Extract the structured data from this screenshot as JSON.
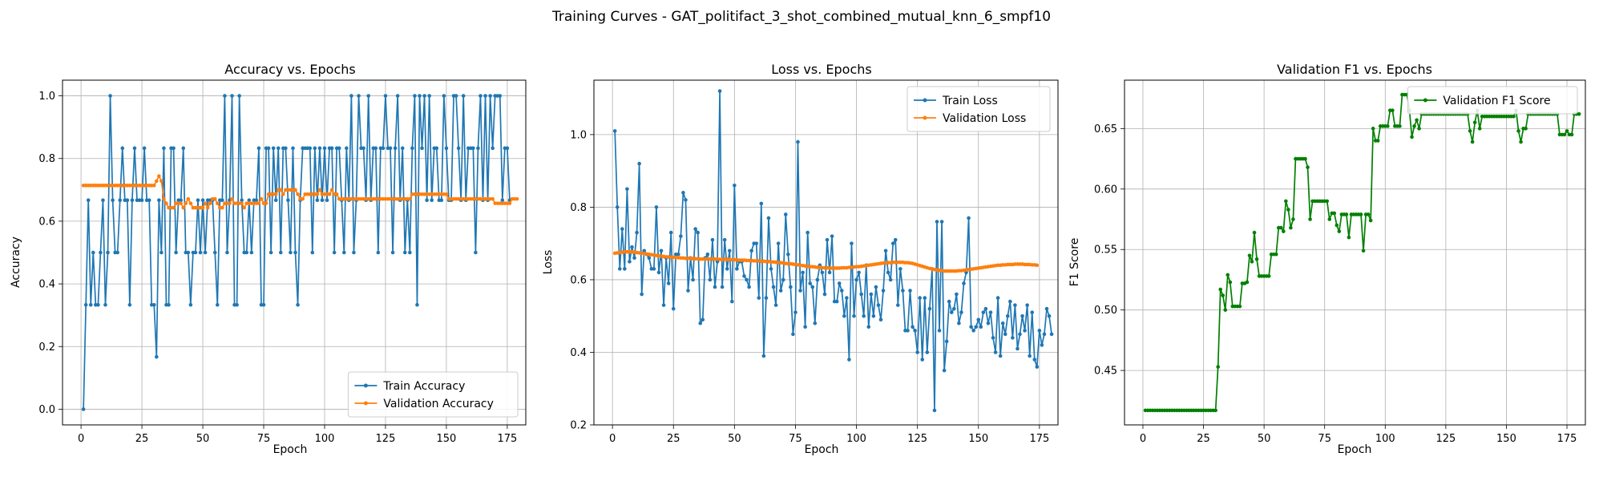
{
  "figure_title": "Training Curves - GAT_politifact_3_shot_combined_mutual_knn_6_smpf10",
  "colors": {
    "train": "#1f77b4",
    "validation": "#ff7f0e",
    "f1": "#008000",
    "grid": "#b0b0b0"
  },
  "chart_data": [
    {
      "type": "line",
      "title": "Accuracy vs. Epochs",
      "xlabel": "Epoch",
      "ylabel": "Accuracy",
      "xlim": [
        -7.6,
        182.6
      ],
      "ylim": [
        -0.05,
        1.05
      ],
      "xticks": [
        0,
        25,
        50,
        75,
        100,
        125,
        150,
        175
      ],
      "yticks": [
        0.0,
        0.2,
        0.4,
        0.6,
        0.8,
        1.0
      ],
      "ytick_decimals": 1,
      "grid": true,
      "legend_position": "lower-right",
      "series": [
        {
          "name": "Train Accuracy",
          "color_key": "train",
          "values": [
            0,
            0.333,
            0.667,
            0.333,
            0.5,
            0.333,
            0.333,
            0.5,
            0.667,
            0.333,
            0.5,
            1,
            0.667,
            0.5,
            0.5,
            0.667,
            0.833,
            0.667,
            0.667,
            0.333,
            0.667,
            0.833,
            0.667,
            0.667,
            0.667,
            0.833,
            0.667,
            0.667,
            0.333,
            0.333,
            0.167,
            0.667,
            0.5,
            0.833,
            0.333,
            0.333,
            0.833,
            0.833,
            0.5,
            0.667,
            0.667,
            0.833,
            0.5,
            0.5,
            0.333,
            0.5,
            0.5,
            0.667,
            0.5,
            0.667,
            0.5,
            0.667,
            0.667,
            0.667,
            0.5,
            0.333,
            0.667,
            0.667,
            1,
            0.5,
            0.667,
            1,
            0.333,
            0.333,
            1,
            0.667,
            0.5,
            0.5,
            0.667,
            0.5,
            0.667,
            0.667,
            0.833,
            0.333,
            0.333,
            0.833,
            0.833,
            0.5,
            0.833,
            0.667,
            0.833,
            0.5,
            0.833,
            0.833,
            0.667,
            0.5,
            0.833,
            0.5,
            0.333,
            0.667,
            0.833,
            0.833,
            0.833,
            0.833,
            0.5,
            0.833,
            0.667,
            0.833,
            0.667,
            0.833,
            0.667,
            0.833,
            0.833,
            0.5,
            0.833,
            0.833,
            0.667,
            0.5,
            0.833,
            0.667,
            1,
            0.5,
            0.667,
            1,
            0.833,
            0.833,
            0.667,
            1,
            0.667,
            0.833,
            0.833,
            0.5,
            0.833,
            0.833,
            1,
            0.833,
            0.833,
            0.5,
            0.833,
            1,
            0.667,
            0.833,
            0.5,
            0.667,
            0.5,
            0.833,
            1,
            0.333,
            1,
            0.833,
            1,
            0.667,
            1,
            0.667,
            0.833,
            0.833,
            0.667,
            0.667,
            1,
            0.833,
            0.667,
            0.667,
            1,
            1,
            0.833,
            0.667,
            1,
            0.667,
            0.833,
            0.833,
            0.833,
            0.5,
            0.833,
            1,
            0.667,
            1,
            0.667,
            1,
            0.833,
            1,
            1,
            1,
            0.667,
            0.833,
            0.833,
            0.667
          ]
        },
        {
          "name": "Validation Accuracy",
          "color_key": "validation",
          "values": [
            0.714,
            0.714,
            0.714,
            0.714,
            0.714,
            0.714,
            0.714,
            0.714,
            0.714,
            0.714,
            0.714,
            0.714,
            0.714,
            0.714,
            0.714,
            0.714,
            0.714,
            0.714,
            0.714,
            0.714,
            0.714,
            0.714,
            0.714,
            0.714,
            0.714,
            0.714,
            0.714,
            0.714,
            0.714,
            0.714,
            0.728,
            0.744,
            0.728,
            0.671,
            0.657,
            0.643,
            0.643,
            0.643,
            0.657,
            0.657,
            0.657,
            0.643,
            0.657,
            0.671,
            0.657,
            0.643,
            0.643,
            0.643,
            0.643,
            0.643,
            0.657,
            0.643,
            0.657,
            0.671,
            0.671,
            0.657,
            0.643,
            0.643,
            0.657,
            0.657,
            0.657,
            0.671,
            0.657,
            0.657,
            0.657,
            0.657,
            0.643,
            0.657,
            0.657,
            0.657,
            0.657,
            0.657,
            0.657,
            0.671,
            0.657,
            0.657,
            0.686,
            0.686,
            0.686,
            0.686,
            0.7,
            0.7,
            0.686,
            0.7,
            0.7,
            0.7,
            0.7,
            0.7,
            0.686,
            0.671,
            0.671,
            0.686,
            0.686,
            0.686,
            0.686,
            0.686,
            0.686,
            0.7,
            0.686,
            0.686,
            0.686,
            0.686,
            0.7,
            0.686,
            0.686,
            0.671,
            0.671,
            0.671,
            0.671,
            0.671,
            0.671,
            0.671,
            0.671,
            0.671,
            0.671,
            0.671,
            0.671,
            0.671,
            0.671,
            0.671,
            0.671,
            0.671,
            0.671,
            0.671,
            0.671,
            0.671,
            0.671,
            0.671,
            0.671,
            0.671,
            0.671,
            0.671,
            0.671,
            0.671,
            0.671,
            0.686,
            0.686,
            0.686,
            0.686,
            0.686,
            0.686,
            0.686,
            0.686,
            0.686,
            0.686,
            0.686,
            0.686,
            0.686,
            0.686,
            0.686,
            0.671,
            0.671,
            0.671,
            0.671,
            0.671,
            0.671,
            0.671,
            0.671,
            0.671,
            0.671,
            0.671,
            0.671,
            0.671,
            0.671,
            0.671,
            0.671,
            0.671,
            0.671,
            0.671,
            0.657,
            0.657,
            0.657,
            0.657,
            0.657,
            0.657,
            0.657,
            0.671,
            0.671,
            0.671
          ]
        }
      ]
    },
    {
      "type": "line",
      "title": "Loss vs. Epochs",
      "xlabel": "Epoch",
      "ylabel": "Loss",
      "xlim": [
        -7.6,
        182.6
      ],
      "ylim": [
        0.2,
        1.15
      ],
      "xticks": [
        0,
        25,
        50,
        75,
        100,
        125,
        150,
        175
      ],
      "yticks": [
        0.2,
        0.4,
        0.6,
        0.8,
        1.0
      ],
      "ytick_decimals": 1,
      "grid": true,
      "legend_position": "upper-right",
      "series": [
        {
          "name": "Train Loss",
          "color_key": "train",
          "values": [
            1.01,
            0.8,
            0.63,
            0.74,
            0.63,
            0.85,
            0.65,
            0.69,
            0.66,
            0.73,
            0.92,
            0.56,
            0.68,
            0.67,
            0.66,
            0.63,
            0.63,
            0.8,
            0.62,
            0.68,
            0.53,
            0.66,
            0.59,
            0.73,
            0.52,
            0.67,
            0.67,
            0.72,
            0.84,
            0.82,
            0.57,
            0.66,
            0.6,
            0.74,
            0.73,
            0.48,
            0.49,
            0.66,
            0.67,
            0.6,
            0.71,
            0.58,
            0.65,
            1.12,
            0.58,
            0.71,
            0.63,
            0.68,
            0.54,
            0.86,
            0.63,
            0.65,
            0.65,
            0.61,
            0.6,
            0.58,
            0.68,
            0.7,
            0.7,
            0.55,
            0.81,
            0.39,
            0.55,
            0.77,
            0.63,
            0.58,
            0.53,
            0.7,
            0.57,
            0.6,
            0.78,
            0.67,
            0.58,
            0.45,
            0.51,
            0.98,
            0.57,
            0.62,
            0.47,
            0.73,
            0.59,
            0.58,
            0.48,
            0.6,
            0.64,
            0.62,
            0.56,
            0.71,
            0.62,
            0.72,
            0.54,
            0.54,
            0.59,
            0.57,
            0.5,
            0.55,
            0.38,
            0.7,
            0.5,
            0.6,
            0.62,
            0.56,
            0.5,
            0.64,
            0.47,
            0.56,
            0.5,
            0.58,
            0.53,
            0.49,
            0.57,
            0.68,
            0.62,
            0.6,
            0.7,
            0.71,
            0.53,
            0.63,
            0.57,
            0.46,
            0.46,
            0.57,
            0.47,
            0.46,
            0.4,
            0.55,
            0.38,
            0.55,
            0.4,
            0.52,
            0.63,
            0.24,
            0.76,
            0.46,
            0.76,
            0.35,
            0.43,
            0.54,
            0.51,
            0.52,
            0.56,
            0.48,
            0.51,
            0.59,
            0.62,
            0.77,
            0.47,
            0.46,
            0.47,
            0.49,
            0.47,
            0.51,
            0.52,
            0.48,
            0.51,
            0.44,
            0.4,
            0.55,
            0.39,
            0.48,
            0.45,
            0.5,
            0.54,
            0.44,
            0.53,
            0.41,
            0.45,
            0.5,
            0.46,
            0.53,
            0.39,
            0.51,
            0.38,
            0.36,
            0.46,
            0.42,
            0.45,
            0.52,
            0.5,
            0.45
          ]
        },
        {
          "name": "Validation Loss",
          "color_key": "validation",
          "values": [
            0.673,
            0.674,
            0.675,
            0.676,
            0.677,
            0.677,
            0.677,
            0.677,
            0.676,
            0.675,
            0.674,
            0.673,
            0.672,
            0.671,
            0.67,
            0.669,
            0.668,
            0.667,
            0.666,
            0.665,
            0.664,
            0.663,
            0.663,
            0.662,
            0.662,
            0.661,
            0.661,
            0.66,
            0.66,
            0.659,
            0.659,
            0.659,
            0.658,
            0.658,
            0.658,
            0.657,
            0.657,
            0.657,
            0.657,
            0.657,
            0.657,
            0.657,
            0.657,
            0.656,
            0.656,
            0.656,
            0.656,
            0.656,
            0.655,
            0.655,
            0.655,
            0.654,
            0.654,
            0.654,
            0.653,
            0.653,
            0.653,
            0.652,
            0.652,
            0.652,
            0.651,
            0.651,
            0.65,
            0.65,
            0.649,
            0.649,
            0.648,
            0.647,
            0.647,
            0.646,
            0.645,
            0.644,
            0.644,
            0.643,
            0.642,
            0.641,
            0.64,
            0.639,
            0.638,
            0.637,
            0.636,
            0.636,
            0.635,
            0.634,
            0.634,
            0.633,
            0.633,
            0.633,
            0.632,
            0.632,
            0.632,
            0.632,
            0.632,
            0.633,
            0.633,
            0.633,
            0.634,
            0.634,
            0.635,
            0.636,
            0.636,
            0.637,
            0.638,
            0.639,
            0.64,
            0.641,
            0.642,
            0.643,
            0.644,
            0.645,
            0.646,
            0.646,
            0.647,
            0.647,
            0.648,
            0.648,
            0.648,
            0.648,
            0.648,
            0.647,
            0.647,
            0.646,
            0.645,
            0.643,
            0.641,
            0.639,
            0.637,
            0.635,
            0.633,
            0.631,
            0.629,
            0.628,
            0.627,
            0.626,
            0.625,
            0.624,
            0.624,
            0.624,
            0.624,
            0.624,
            0.624,
            0.625,
            0.625,
            0.626,
            0.627,
            0.628,
            0.629,
            0.63,
            0.631,
            0.632,
            0.633,
            0.634,
            0.635,
            0.636,
            0.637,
            0.638,
            0.639,
            0.64,
            0.64,
            0.641,
            0.641,
            0.642,
            0.642,
            0.642,
            0.643,
            0.643,
            0.643,
            0.643,
            0.642,
            0.642,
            0.642,
            0.641,
            0.641,
            0.64
          ]
        }
      ]
    },
    {
      "type": "line",
      "title": "Validation F1 vs. Epochs",
      "xlabel": "Epoch",
      "ylabel": "F1 Score",
      "xlim": [
        -7.6,
        182.6
      ],
      "ylim": [
        0.405,
        0.69
      ],
      "xticks": [
        0,
        25,
        50,
        75,
        100,
        125,
        150,
        175
      ],
      "yticks": [
        0.45,
        0.5,
        0.55,
        0.6,
        0.65
      ],
      "ytick_decimals": 2,
      "grid": true,
      "legend_position": "upper-right",
      "series": [
        {
          "name": "Validation F1 Score",
          "color_key": "f1",
          "values": [
            0.417,
            0.417,
            0.417,
            0.417,
            0.417,
            0.417,
            0.417,
            0.417,
            0.417,
            0.417,
            0.417,
            0.417,
            0.417,
            0.417,
            0.417,
            0.417,
            0.417,
            0.417,
            0.417,
            0.417,
            0.417,
            0.417,
            0.417,
            0.417,
            0.417,
            0.417,
            0.417,
            0.417,
            0.417,
            0.417,
            0.453,
            0.517,
            0.512,
            0.5,
            0.529,
            0.523,
            0.503,
            0.503,
            0.503,
            0.503,
            0.522,
            0.522,
            0.523,
            0.545,
            0.54,
            0.564,
            0.542,
            0.528,
            0.528,
            0.528,
            0.528,
            0.528,
            0.546,
            0.546,
            0.546,
            0.568,
            0.568,
            0.565,
            0.59,
            0.583,
            0.568,
            0.575,
            0.625,
            0.625,
            0.625,
            0.625,
            0.625,
            0.618,
            0.575,
            0.59,
            0.59,
            0.59,
            0.59,
            0.59,
            0.59,
            0.59,
            0.575,
            0.58,
            0.58,
            0.57,
            0.565,
            0.579,
            0.579,
            0.579,
            0.56,
            0.579,
            0.579,
            0.579,
            0.579,
            0.579,
            0.549,
            0.579,
            0.579,
            0.574,
            0.65,
            0.64,
            0.64,
            0.652,
            0.652,
            0.652,
            0.652,
            0.665,
            0.665,
            0.652,
            0.652,
            0.652,
            0.678,
            0.678,
            0.678,
            0.665,
            0.643,
            0.652,
            0.657,
            0.65,
            0.662,
            0.662,
            0.662,
            0.662,
            0.662,
            0.662,
            0.662,
            0.662,
            0.662,
            0.662,
            0.662,
            0.662,
            0.662,
            0.662,
            0.662,
            0.662,
            0.662,
            0.662,
            0.662,
            0.662,
            0.648,
            0.639,
            0.655,
            0.665,
            0.65,
            0.66,
            0.66,
            0.66,
            0.66,
            0.66,
            0.66,
            0.66,
            0.66,
            0.66,
            0.66,
            0.66,
            0.66,
            0.66,
            0.66,
            0.665,
            0.648,
            0.639,
            0.65,
            0.65,
            0.662,
            0.662,
            0.662,
            0.662,
            0.662,
            0.662,
            0.662,
            0.662,
            0.662,
            0.662,
            0.662,
            0.662,
            0.662,
            0.645,
            0.645,
            0.645,
            0.648,
            0.645,
            0.645,
            0.662,
            0.662,
            0.662
          ]
        }
      ]
    }
  ]
}
